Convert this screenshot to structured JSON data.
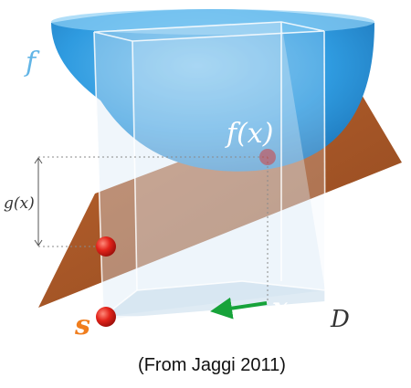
{
  "labels": {
    "f": "f",
    "f_of_x": "f(x)",
    "g_of_x": "g(x)",
    "s": "s",
    "x": "x",
    "domain_D": "D"
  },
  "caption": "(From Jaggi 2011)",
  "colors": {
    "bowl": "#2f9be0",
    "bowl_highlight": "#7cc6f2",
    "plane": "#a24e1d",
    "prism": "#cfe3f2",
    "prism_edge": "#ffffff",
    "point": "#e2231a",
    "arrow": "#17a33a",
    "f_label": "#62b5e6",
    "s_label": "#f07d1d",
    "f_of_x_label": "#ffffff",
    "x_label": "#ffffff",
    "d_label": "#333333",
    "guide": "#888888"
  }
}
